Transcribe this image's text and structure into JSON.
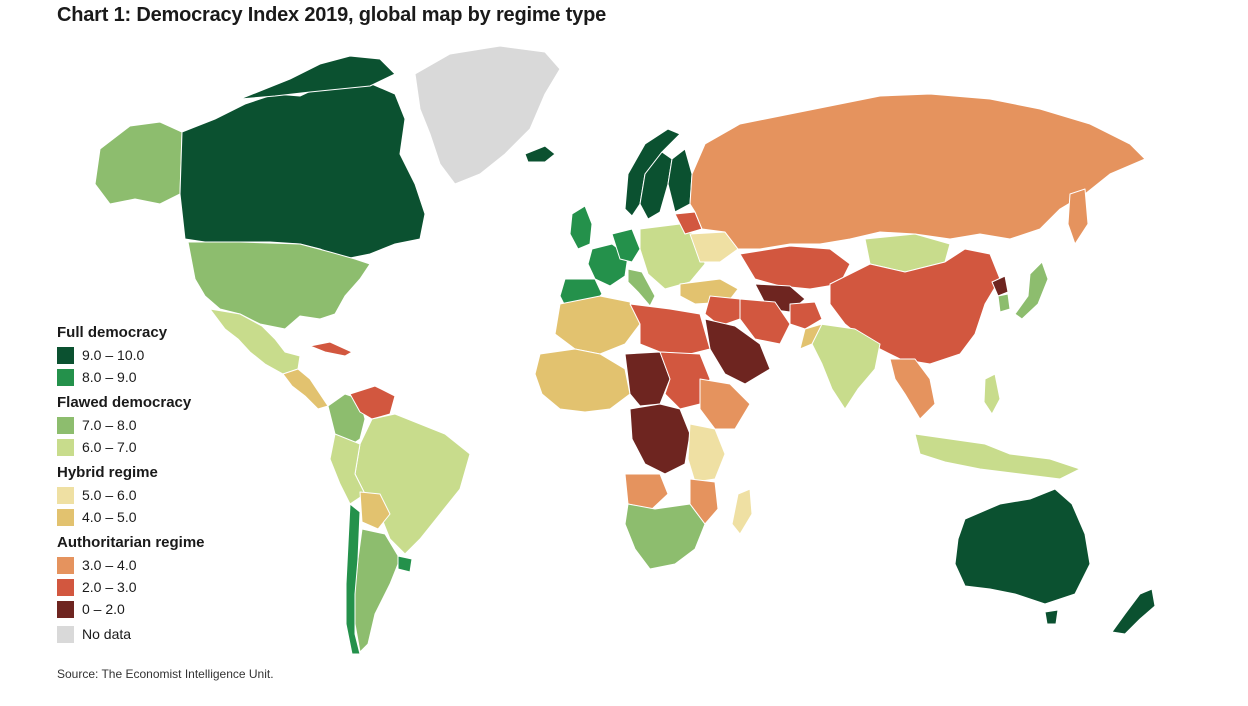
{
  "title": "Chart 1: Democracy Index 2019, global map by regime type",
  "source": "Source: The Economist Intelligence Unit.",
  "legend": {
    "groups": [
      {
        "name": "Full democracy",
        "items": [
          {
            "label": "9.0 – 10.0",
            "color": "#0b5130"
          },
          {
            "label": "8.0 – 9.0",
            "color": "#24914b"
          }
        ]
      },
      {
        "name": "Flawed democracy",
        "items": [
          {
            "label": "7.0 – 8.0",
            "color": "#8dbd6e"
          },
          {
            "label": "6.0 – 7.0",
            "color": "#c8dc8c"
          }
        ]
      },
      {
        "name": "Hybrid regime",
        "items": [
          {
            "label": "5.0 – 6.0",
            "color": "#efe0a3"
          },
          {
            "label": "4.0 – 5.0",
            "color": "#e2c26f"
          }
        ]
      },
      {
        "name": "Authoritarian regime",
        "items": [
          {
            "label": "3.0 – 4.0",
            "color": "#e5935e"
          },
          {
            "label": "2.0 – 3.0",
            "color": "#d2573f"
          },
          {
            "label": "0 – 2.0",
            "color": "#6e2520"
          }
        ]
      }
    ],
    "nodata": {
      "label": "No data",
      "color": "#d9d9d9"
    }
  },
  "colors": {
    "ocean": "#ffffff",
    "border": "#ffffff",
    "coast": "#4a86b8"
  }
}
